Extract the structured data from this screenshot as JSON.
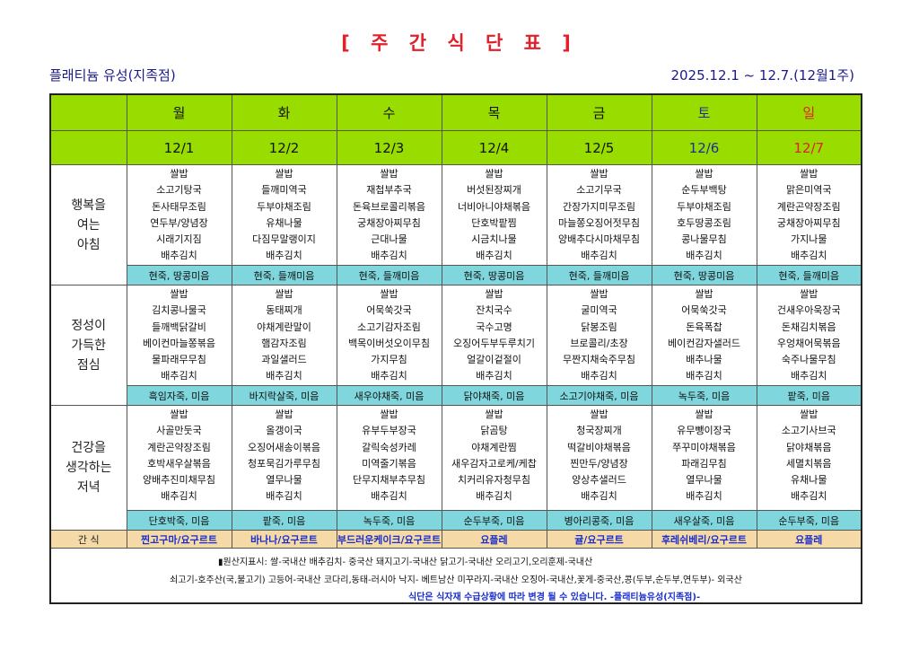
{
  "title": "[ 주 간 식 단 표 ]",
  "store": "플래티늄 유성(지족점)",
  "period": "2025.12.1 ~ 12.7.(12월1주)",
  "colors": {
    "header_green": "#99dd00",
    "porridge_cyan": "#7fd6dc",
    "snack_tan": "#f5d9a6",
    "saturday_blue": "#1a2ea0",
    "sunday_red": "#e0202a",
    "title_red": "#e0202a"
  },
  "meal_labels": {
    "breakfast": [
      "행복을",
      "여는",
      "아침"
    ],
    "lunch": [
      "정성이",
      "가득한",
      "점심"
    ],
    "dinner": [
      "건강을",
      "생각하는",
      "저녁"
    ],
    "snack": "간 식"
  },
  "days": [
    {
      "day": "월",
      "date": "12/1",
      "breakfast": [
        "쌀밥",
        "소고기탕국",
        "돈사태무조림",
        "연두부/양념장",
        "시래기지짐",
        "배추김치"
      ],
      "breakfast_porridge": "현죽, 땅콩미음",
      "lunch": [
        "쌀밥",
        "김치콩나물국",
        "들깨백닭갈비",
        "베이컨마늘쫑볶음",
        "물파래무무침",
        "배추김치"
      ],
      "lunch_porridge": "흑임자죽, 미음",
      "dinner": [
        "쌀밥",
        "사골만둣국",
        "계란곤약장조림",
        "호박새우살볶음",
        "양배추진미채무침",
        "배추김치"
      ],
      "dinner_porridge": "단호박죽, 미음",
      "snack": "찐고구마/요구르트"
    },
    {
      "day": "화",
      "date": "12/2",
      "breakfast": [
        "쌀밥",
        "들깨미역국",
        "두부야채조림",
        "유채나물",
        "다짐무말랭이지",
        "배추김치"
      ],
      "breakfast_porridge": "현죽, 들깨미음",
      "lunch": [
        "쌀밥",
        "동태찌개",
        "야채계란말이",
        "햄감자조림",
        "과일샐러드",
        "배추김치"
      ],
      "lunch_porridge": "바지락살죽, 미음",
      "dinner": [
        "쌀밥",
        "올갱이국",
        "오징어새송이볶음",
        "청포묵김가루무침",
        "열무나물",
        "배추김치"
      ],
      "dinner_porridge": "팥죽, 미음",
      "snack": "바나나/요구르트"
    },
    {
      "day": "수",
      "date": "12/3",
      "breakfast": [
        "쌀밥",
        "재첩부추국",
        "돈육브로콜리볶음",
        "궁채장아찌무침",
        "근대나물",
        "배추김치"
      ],
      "breakfast_porridge": "현죽, 들깨미음",
      "lunch": [
        "쌀밥",
        "어묵쑥갓국",
        "소고기감자조림",
        "백목이버섯오이무침",
        "가지무침",
        "배추김치"
      ],
      "lunch_porridge": "새우야채죽, 미음",
      "dinner": [
        "쌀밥",
        "유부두부장국",
        "갈릭숙성카레",
        "미역줄기볶음",
        "단무지채부추무침",
        "배추김치"
      ],
      "dinner_porridge": "녹두죽, 미음",
      "snack": "부드러운케이크/요구르트"
    },
    {
      "day": "목",
      "date": "12/4",
      "breakfast": [
        "쌀밥",
        "버섯된장찌개",
        "너비아니야채볶음",
        "단호박팥찜",
        "시금치나물",
        "배추김치"
      ],
      "breakfast_porridge": "현죽, 땅콩미음",
      "lunch": [
        "쌀밥",
        "잔치국수",
        "국수고명",
        "오징어두부두루치기",
        "얼갈이겉절이",
        "배추김치"
      ],
      "lunch_porridge": "닭야채죽, 미음",
      "dinner": [
        "쌀밥",
        "닭곰탕",
        "야채계란찜",
        "새우감자고로케/케찹",
        "치커리유자청무침",
        "배추김치"
      ],
      "dinner_porridge": "순두부죽, 미음",
      "snack": "요플레"
    },
    {
      "day": "금",
      "date": "12/5",
      "breakfast": [
        "쌀밥",
        "소고기무국",
        "간장가지미무조림",
        "마늘쫑오징어젓무침",
        "양배추다시마채무침",
        "배추김치"
      ],
      "breakfast_porridge": "현죽, 들깨미음",
      "lunch": [
        "쌀밥",
        "굴미역국",
        "닭봉조림",
        "브로콜리/초장",
        "무짠지채숙주무침",
        "배추김치"
      ],
      "lunch_porridge": "소고기야채죽, 미음",
      "dinner": [
        "쌀밥",
        "청국장찌개",
        "떡갈비야채볶음",
        "찐만두/양념장",
        "양상추샐러드",
        "배추김치"
      ],
      "dinner_porridge": "병아리콩죽, 미음",
      "snack": "귤/요구르트"
    },
    {
      "day": "토",
      "date": "12/6",
      "breakfast": [
        "쌀밥",
        "순두부백탕",
        "두부야채조림",
        "호두땅콩조림",
        "콩나물무침",
        "배추김치"
      ],
      "breakfast_porridge": "현죽, 땅콩미음",
      "lunch": [
        "쌀밥",
        "어묵쑥갓국",
        "돈육폭찹",
        "베이컨감자샐러드",
        "배추나물",
        "배추김치"
      ],
      "lunch_porridge": "녹두죽, 미음",
      "dinner": [
        "쌀밥",
        "유무뺑이장국",
        "쭈꾸미야채볶음",
        "파래김무침",
        "열무나물",
        "배추김치"
      ],
      "dinner_porridge": "새우살죽, 미음",
      "snack": "후레쉬베리/요구르트"
    },
    {
      "day": "일",
      "date": "12/7",
      "breakfast": [
        "쌀밥",
        "맑은미역국",
        "계란곤약장조림",
        "궁채장아찌무침",
        "가지나물",
        "배추김치"
      ],
      "breakfast_porridge": "현죽, 들깨미음",
      "lunch": [
        "쌀밥",
        "건새우아욱장국",
        "돈채김치볶음",
        "우엉채어묵볶음",
        "숙주나물무침",
        "배추김치"
      ],
      "lunch_porridge": "팥죽, 미음",
      "dinner": [
        "쌀밥",
        "소고기사브국",
        "닭야채볶음",
        "세멸치볶음",
        "유채나물",
        "배추김치"
      ],
      "dinner_porridge": "순두부죽, 미음",
      "snack": "요플레"
    }
  ],
  "footer": {
    "origin_line1": "▮원산지표시: 쌀-국내산  배추김치- 중국산  돼지고기-국내산  닭고기-국내산  오리고기,오리훈제-국내산",
    "origin_line2": "쇠고기-호주산(국,불고기)  고등어-국내산 코다리,동태-러시아  낙지- 베트남산 미꾸라지-국내산  오징어-국내산,꽃게-중국산,콩(두부,순두부,연두부)- 외국산",
    "notice": "식단은 식자재 수급상황에 따라 변경 될 수 있습니다.  -플래티늄유성(지족점)-"
  }
}
